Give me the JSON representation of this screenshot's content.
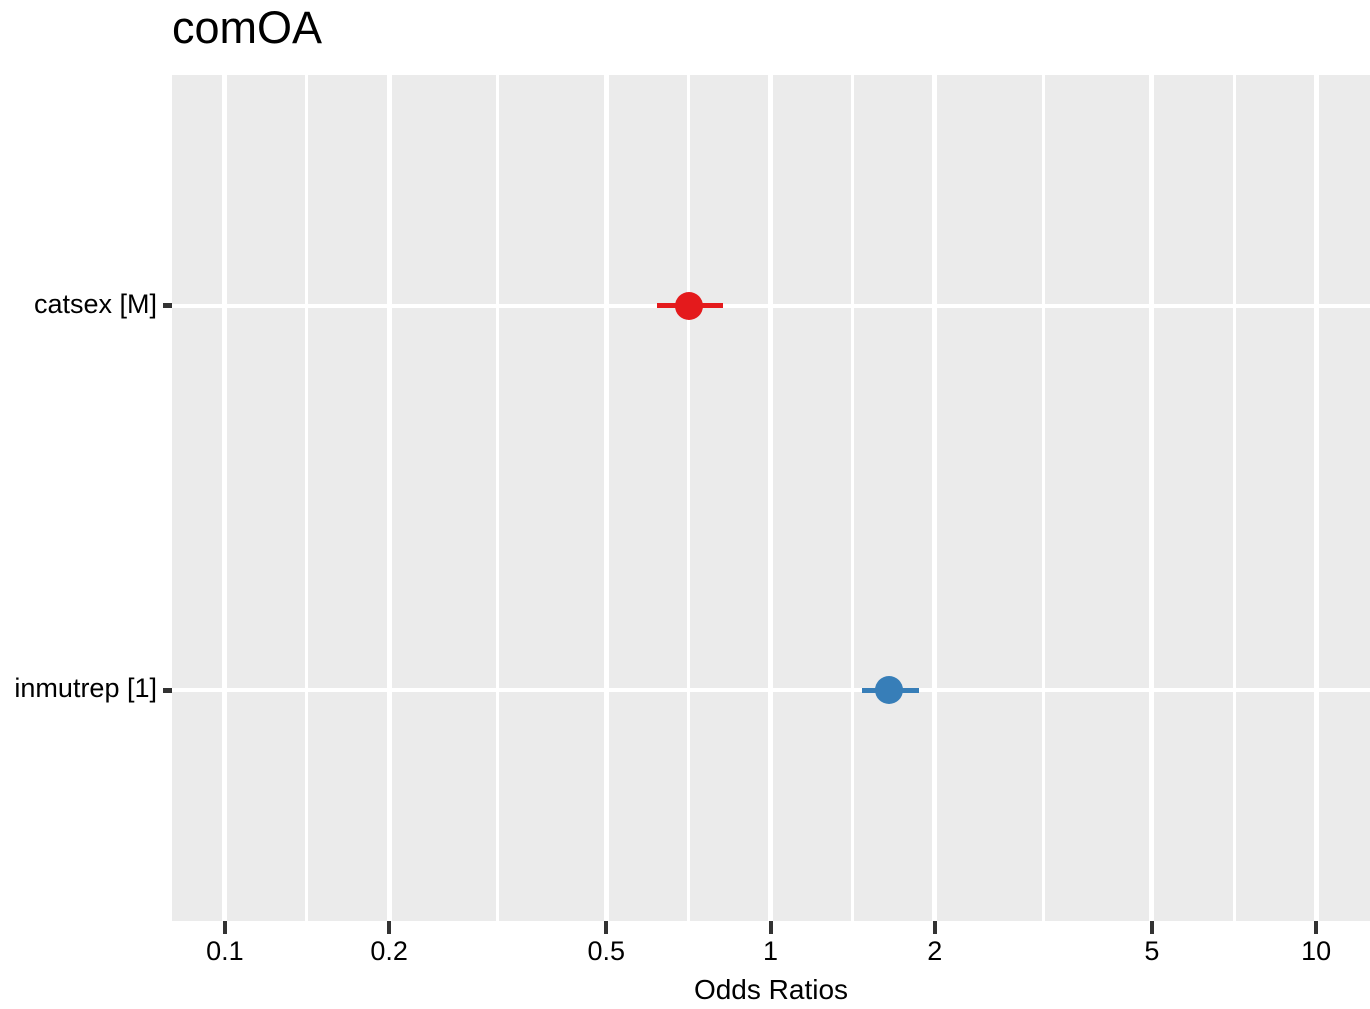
{
  "title": "comOA",
  "x_axis_title": "Odds Ratios",
  "colors": {
    "page_background": "#ffffff",
    "panel_background": "#ebebeb",
    "gridline": "#ffffff",
    "tick_mark": "#333333",
    "text": "#000000",
    "negative_effect": "#e41a1c",
    "positive_effect": "#377eb8"
  },
  "chart_data": {
    "type": "scatter",
    "subtype": "forest-plot",
    "title": "comOA",
    "xlabel": "Odds Ratios",
    "ylabel": "",
    "x_scale": "log10",
    "xlim": [
      0.08,
      12.55
    ],
    "grid": true,
    "legend": false,
    "x_ticks": [
      0.1,
      0.2,
      0.5,
      1,
      2,
      5,
      10
    ],
    "x_tick_labels": [
      "0.1",
      "0.2",
      "0.5",
      "1",
      "2",
      "5",
      "10"
    ],
    "x_minor_gridlines": [
      0.1414,
      0.3162,
      0.7071,
      1.4142,
      3.1623,
      7.0711
    ],
    "categories": [
      "catsex [M]",
      "inmutrep [1]"
    ],
    "series": [
      {
        "name": "catsex [M]",
        "odds_ratio": 0.71,
        "ci_low": 0.62,
        "ci_high": 0.82,
        "color": "#e41a1c"
      },
      {
        "name": "inmutrep [1]",
        "odds_ratio": 1.65,
        "ci_low": 1.47,
        "ci_high": 1.87,
        "color": "#377eb8"
      }
    ]
  }
}
